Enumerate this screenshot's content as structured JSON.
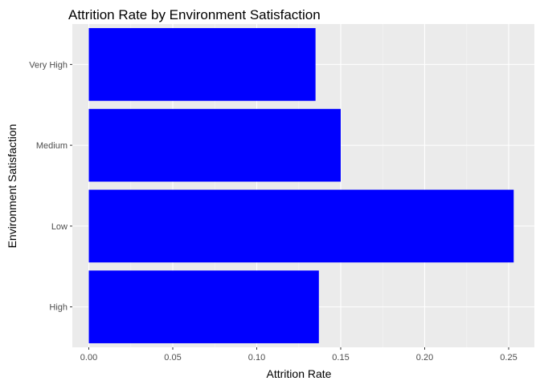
{
  "chart_data": {
    "type": "bar",
    "orientation": "horizontal",
    "title": "Attrition Rate by Environment Satisfaction",
    "xlabel": "Attrition Rate",
    "ylabel": "Environment Satisfaction",
    "categories": [
      "High",
      "Low",
      "Medium",
      "Very High"
    ],
    "values": [
      0.137,
      0.253,
      0.15,
      0.135
    ],
    "xlim": [
      0,
      0.26
    ],
    "xticks": [
      0,
      0.05,
      0.1,
      0.15,
      0.2,
      0.25
    ],
    "xtick_labels": [
      "0.00",
      "0.05",
      "0.10",
      "0.15",
      "0.20",
      "0.25"
    ],
    "grid": true,
    "legend": "none",
    "colors": {
      "bar": "#0000FF",
      "panel_background": "#EBEBEB",
      "grid_major": "#FFFFFF",
      "grid_minor": "#F5F5F5",
      "tick_text": "#4D4D4D",
      "tick_mark": "#333333"
    }
  }
}
